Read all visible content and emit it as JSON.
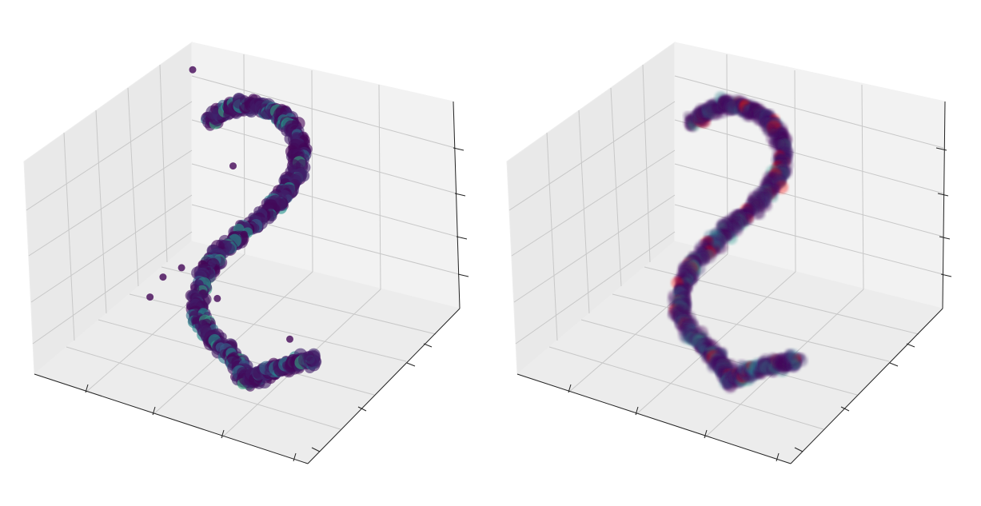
{
  "chart_data": [
    {
      "type": "scatter",
      "projection": "3d",
      "title": "",
      "xlabel": "",
      "ylabel": "",
      "zlabel": "",
      "tick_labels_shown": false,
      "grid": true,
      "pane_color": "#f2f2f2",
      "colormap": "viridis",
      "marker_alpha": 0.6,
      "series": [
        {
          "points": [
            [
              0.22,
              0.78,
              0.8
            ],
            [
              0.26,
              0.8,
              0.86
            ],
            [
              0.32,
              0.82,
              0.9
            ],
            [
              0.38,
              0.83,
              0.92
            ],
            [
              0.44,
              0.83,
              0.91
            ],
            [
              0.5,
              0.82,
              0.88
            ],
            [
              0.54,
              0.8,
              0.82
            ],
            [
              0.55,
              0.78,
              0.74
            ],
            [
              0.53,
              0.75,
              0.66
            ],
            [
              0.5,
              0.72,
              0.58
            ],
            [
              0.46,
              0.68,
              0.52
            ],
            [
              0.42,
              0.64,
              0.46
            ],
            [
              0.38,
              0.6,
              0.4
            ],
            [
              0.35,
              0.56,
              0.34
            ],
            [
              0.33,
              0.52,
              0.28
            ],
            [
              0.33,
              0.48,
              0.22
            ],
            [
              0.35,
              0.44,
              0.17
            ],
            [
              0.4,
              0.4,
              0.13
            ],
            [
              0.46,
              0.38,
              0.1
            ],
            [
              0.52,
              0.36,
              0.08
            ],
            [
              0.56,
              0.34,
              0.05
            ],
            [
              0.6,
              0.32,
              0.02
            ],
            [
              0.64,
              0.34,
              0.06
            ],
            [
              0.7,
              0.36,
              0.1
            ],
            [
              0.76,
              0.38,
              0.14
            ],
            [
              0.8,
              0.4,
              0.16
            ]
          ]
        }
      ]
    },
    {
      "type": "scatter",
      "projection": "3d",
      "title": "",
      "xlabel": "",
      "ylabel": "",
      "zlabel": "",
      "tick_labels_shown": false,
      "grid": true,
      "pane_color": "#f2f2f2",
      "colormap": "viridis",
      "highlight_color": "#ff0000",
      "marker_alpha": 0.35,
      "series": [
        {
          "points": [
            [
              0.22,
              0.78,
              0.8
            ],
            [
              0.26,
              0.8,
              0.86
            ],
            [
              0.32,
              0.82,
              0.9
            ],
            [
              0.38,
              0.83,
              0.92
            ],
            [
              0.44,
              0.83,
              0.91
            ],
            [
              0.5,
              0.82,
              0.88
            ],
            [
              0.54,
              0.8,
              0.82
            ],
            [
              0.55,
              0.78,
              0.74
            ],
            [
              0.53,
              0.75,
              0.66
            ],
            [
              0.5,
              0.72,
              0.58
            ],
            [
              0.46,
              0.68,
              0.52
            ],
            [
              0.42,
              0.64,
              0.46
            ],
            [
              0.38,
              0.6,
              0.4
            ],
            [
              0.35,
              0.56,
              0.34
            ],
            [
              0.33,
              0.52,
              0.28
            ],
            [
              0.33,
              0.48,
              0.22
            ],
            [
              0.35,
              0.44,
              0.17
            ],
            [
              0.4,
              0.4,
              0.13
            ],
            [
              0.46,
              0.38,
              0.1
            ],
            [
              0.52,
              0.36,
              0.08
            ],
            [
              0.56,
              0.34,
              0.05
            ],
            [
              0.6,
              0.32,
              0.02
            ],
            [
              0.64,
              0.34,
              0.06
            ],
            [
              0.7,
              0.36,
              0.1
            ],
            [
              0.76,
              0.38,
              0.14
            ],
            [
              0.8,
              0.4,
              0.16
            ]
          ]
        }
      ]
    }
  ]
}
